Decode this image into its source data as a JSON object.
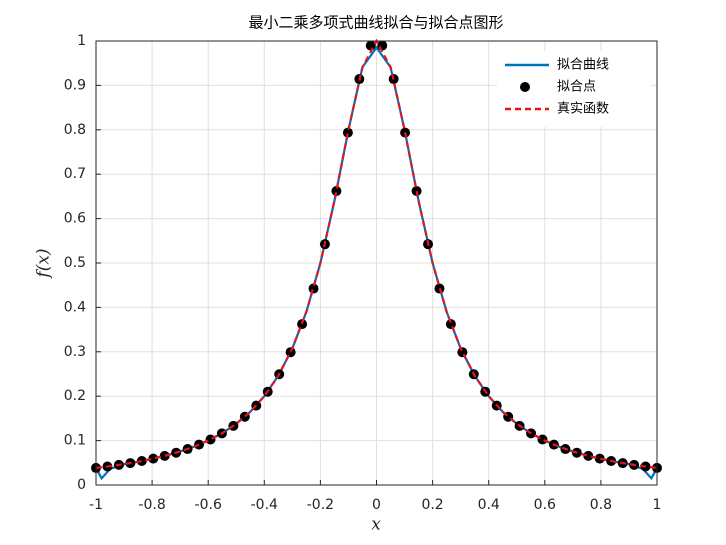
{
  "chart_data": {
    "type": "line",
    "title": "最小二乘多项式曲线拟合与拟合点图形",
    "x_label": "x",
    "y_label": "f(x)",
    "xlim": [
      -1,
      1
    ],
    "ylim": [
      0,
      1
    ],
    "xticks": [
      -1,
      -0.8,
      -0.6,
      -0.4,
      -0.2,
      0,
      0.2,
      0.4,
      0.6,
      0.8,
      1
    ],
    "yticks": [
      0,
      0.1,
      0.2,
      0.3,
      0.4,
      0.5,
      0.6,
      0.7,
      0.8,
      0.9,
      1
    ],
    "grid": true,
    "legend": "top-right",
    "series": [
      {
        "name": "拟合曲线",
        "color": "#0072bd",
        "style": "solid",
        "x": [
          -1,
          -0.98,
          -0.95,
          -0.9,
          -0.85,
          -0.8,
          -0.75,
          -0.7,
          -0.65,
          -0.6,
          -0.55,
          -0.5,
          -0.45,
          -0.4,
          -0.35,
          -0.3,
          -0.25,
          -0.2,
          -0.15,
          -0.1,
          -0.05,
          0,
          0.05,
          0.1,
          0.15,
          0.2,
          0.25,
          0.3,
          0.35,
          0.4,
          0.45,
          0.5,
          0.55,
          0.6,
          0.65,
          0.7,
          0.75,
          0.8,
          0.85,
          0.9,
          0.95,
          0.98,
          1
        ],
        "values": [
          0.038,
          0.015,
          0.036,
          0.047,
          0.0525,
          0.0588,
          0.0664,
          0.0755,
          0.0865,
          0.1,
          0.1168,
          0.1379,
          0.1649,
          0.2,
          0.2462,
          0.3077,
          0.3902,
          0.5,
          0.64,
          0.8,
          0.9412,
          0.985,
          0.9412,
          0.8,
          0.64,
          0.5,
          0.3902,
          0.3077,
          0.2462,
          0.2,
          0.1649,
          0.1379,
          0.1168,
          0.1,
          0.0865,
          0.0755,
          0.0664,
          0.0588,
          0.0525,
          0.047,
          0.036,
          0.015,
          0.038
        ]
      },
      {
        "name": "真实函数",
        "color": "#e8141c",
        "style": "dashed",
        "x": [
          -1,
          -0.95,
          -0.9,
          -0.85,
          -0.8,
          -0.75,
          -0.7,
          -0.65,
          -0.6,
          -0.55,
          -0.5,
          -0.45,
          -0.4,
          -0.35,
          -0.3,
          -0.25,
          -0.2,
          -0.15,
          -0.1,
          -0.05,
          0,
          0.05,
          0.1,
          0.15,
          0.2,
          0.25,
          0.3,
          0.35,
          0.4,
          0.45,
          0.5,
          0.55,
          0.6,
          0.65,
          0.7,
          0.75,
          0.8,
          0.85,
          0.9,
          0.95,
          1
        ],
        "values": [
          0.0385,
          0.0424,
          0.0471,
          0.0525,
          0.0588,
          0.0664,
          0.0755,
          0.0865,
          0.1,
          0.1168,
          0.1379,
          0.1649,
          0.2,
          0.2462,
          0.3077,
          0.3902,
          0.5,
          0.64,
          0.8,
          0.9412,
          1,
          0.9412,
          0.8,
          0.64,
          0.5,
          0.3902,
          0.3077,
          0.2462,
          0.2,
          0.1649,
          0.1379,
          0.1168,
          0.1,
          0.0865,
          0.0755,
          0.0664,
          0.0588,
          0.0525,
          0.0471,
          0.0424,
          0.0385
        ]
      },
      {
        "name": "拟合点",
        "color": "#000000",
        "style": "marker",
        "x": [
          -1,
          -0.9592,
          -0.9184,
          -0.8776,
          -0.8367,
          -0.7959,
          -0.7551,
          -0.7143,
          -0.6735,
          -0.6327,
          -0.5918,
          -0.551,
          -0.5102,
          -0.4694,
          -0.4286,
          -0.3878,
          -0.3469,
          -0.3061,
          -0.2653,
          -0.2245,
          -0.1837,
          -0.1429,
          -0.102,
          -0.0612,
          -0.0204,
          0.0204,
          0.0612,
          0.102,
          0.1429,
          0.1837,
          0.2245,
          0.2653,
          0.3061,
          0.3469,
          0.3878,
          0.4286,
          0.4694,
          0.5102,
          0.551,
          0.5918,
          0.6327,
          0.6735,
          0.7143,
          0.7551,
          0.7959,
          0.8367,
          0.8776,
          0.9184,
          0.9592,
          1
        ],
        "values": [
          0.0385,
          0.0417,
          0.0453,
          0.0494,
          0.054,
          0.0594,
          0.0656,
          0.0727,
          0.081,
          0.0909,
          0.1025,
          0.1164,
          0.1332,
          0.1537,
          0.1788,
          0.2101,
          0.2494,
          0.2991,
          0.3623,
          0.4425,
          0.5424,
          0.6622,
          0.7936,
          0.9143,
          0.9897,
          0.9897,
          0.9143,
          0.7936,
          0.6622,
          0.5424,
          0.4425,
          0.3623,
          0.2991,
          0.2494,
          0.2101,
          0.1788,
          0.1537,
          0.1332,
          0.1164,
          0.1025,
          0.0909,
          0.081,
          0.0727,
          0.0656,
          0.0594,
          0.054,
          0.0494,
          0.0453,
          0.0417,
          0.0385
        ]
      }
    ]
  }
}
